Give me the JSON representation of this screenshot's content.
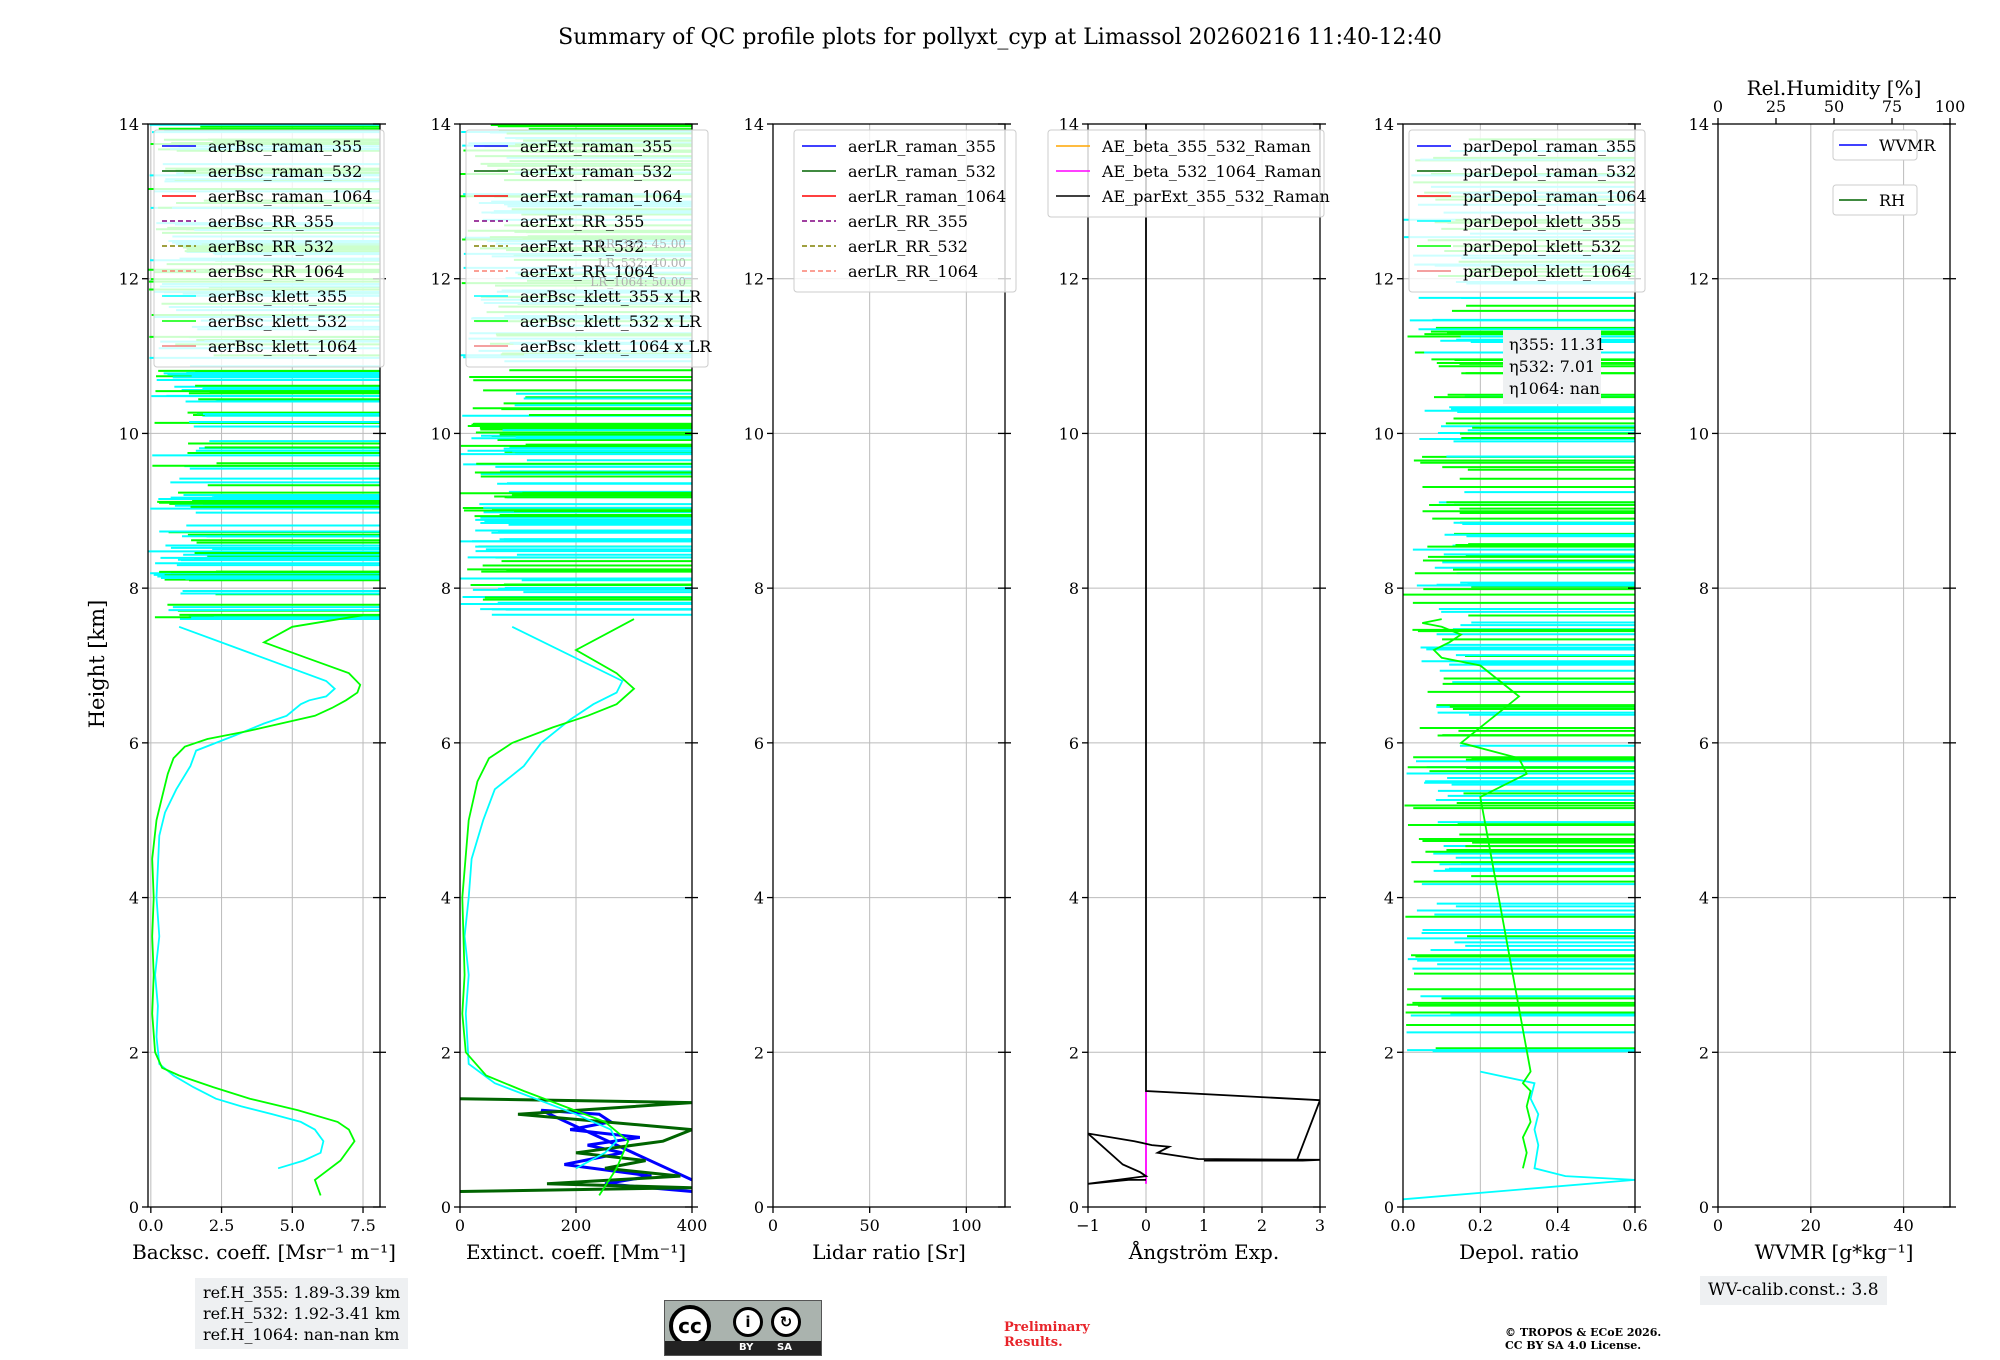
{
  "figure_title": "Summary of QC profile plots for pollyxt_cyp at Limassol 20260216 11:40-12:40",
  "ylabel": "Height [km]",
  "colors": {
    "blue": "#0000ff",
    "darkgreen": "#006400",
    "red": "#ff0000",
    "purple": "#800080",
    "olive": "#808000",
    "salmon": "#fa8072",
    "cyan": "#00ffff",
    "lime": "#00ff00",
    "lightcoral": "#f08080",
    "orange": "#ffa500",
    "magenta": "#ff00ff",
    "black": "#000000",
    "grid": "#bbbbbb"
  },
  "ref_box": [
    "ref.H_355: 1.89-3.39 km",
    "ref.H_532: 1.92-3.41 km",
    "ref.H_1064: nan-nan km"
  ],
  "wv_box": "WV-calib.const.: 3.8",
  "license": {
    "cc": "cc",
    "by": "BY",
    "sa": "SA"
  },
  "preliminary": [
    "Preliminary",
    "Results."
  ],
  "copyright": [
    "© TROPOS & ECoE 2026.",
    "CC BY SA 4.0 License."
  ],
  "chart_data": [
    {
      "type": "line",
      "id": "bsc",
      "xlabel": "Backsc. coeff. [Msr⁻¹ m⁻¹]",
      "xlim": [
        -0.1,
        8.1
      ],
      "xticks": [
        0,
        2.5,
        5,
        7.5
      ],
      "xtick_labels": [
        "0.0",
        "2.5",
        "5.0",
        "7.5"
      ],
      "ylim": [
        0,
        14
      ],
      "yticks": [
        0,
        2,
        4,
        6,
        8,
        10,
        12,
        14
      ],
      "legend": [
        "aerBsc_raman_355",
        "aerBsc_raman_532",
        "aerBsc_raman_1064",
        "aerBsc_RR_355",
        "aerBsc_RR_532",
        "aerBsc_RR_1064",
        "aerBsc_klett_355",
        "aerBsc_klett_532",
        "aerBsc_klett_1064"
      ],
      "legend_colors": [
        "blue",
        "darkgreen",
        "red",
        "purple",
        "olive",
        "salmon",
        "cyan",
        "lime",
        "lightcoral"
      ],
      "legend_dashed": [
        false,
        false,
        false,
        true,
        true,
        true,
        false,
        false,
        false
      ],
      "series": [
        {
          "name": "aerBsc_klett_355",
          "color": "cyan",
          "x": [
            4.5,
            5.4,
            6.0,
            6.1,
            5.8,
            5.3,
            4.3,
            3.2,
            2.3,
            1.5,
            0.8,
            0.3,
            0.2,
            0.25,
            0.15,
            0.3,
            0.2,
            0.25,
            0.3,
            0.5,
            0.9,
            1.4,
            1.6,
            3.0,
            4.0,
            4.8,
            5.3,
            5.6,
            6.2,
            6.5,
            6.2,
            1.0
          ],
          "y": [
            0.5,
            0.6,
            0.7,
            0.85,
            1.0,
            1.1,
            1.2,
            1.3,
            1.4,
            1.55,
            1.7,
            1.85,
            2.2,
            2.6,
            3.0,
            3.5,
            4.0,
            4.4,
            4.8,
            5.1,
            5.4,
            5.7,
            5.9,
            6.1,
            6.25,
            6.35,
            6.5,
            6.55,
            6.6,
            6.7,
            6.8,
            7.5
          ]
        },
        {
          "name": "aerBsc_klett_532",
          "color": "lime",
          "x": [
            6.0,
            5.8,
            6.7,
            7.2,
            7.0,
            6.6,
            5.2,
            3.5,
            2.2,
            1.0,
            0.4,
            0.15,
            0.05,
            0.1,
            0.05,
            0.1,
            0.05,
            0.2,
            0.4,
            0.6,
            0.8,
            1.2,
            2.0,
            3.4,
            4.6,
            5.8,
            6.4,
            6.9,
            7.3,
            7.4,
            7.0,
            5.5,
            4.0,
            5.0,
            7.5
          ],
          "y": [
            0.15,
            0.35,
            0.6,
            0.85,
            1.0,
            1.1,
            1.25,
            1.4,
            1.55,
            1.7,
            1.8,
            2.0,
            2.5,
            3.0,
            3.5,
            4.0,
            4.5,
            5.0,
            5.3,
            5.6,
            5.8,
            5.95,
            6.05,
            6.15,
            6.25,
            6.35,
            6.45,
            6.55,
            6.65,
            6.75,
            6.9,
            7.1,
            7.3,
            7.5,
            7.65
          ]
        }
      ]
    },
    {
      "type": "line",
      "id": "ext",
      "xlabel": "Extinct. coeff. [Mm⁻¹]",
      "xlim": [
        0,
        400
      ],
      "xticks": [
        0,
        200,
        400
      ],
      "xtick_labels": [
        "0",
        "200",
        "400"
      ],
      "ylim": [
        0,
        14
      ],
      "yticks": [
        0,
        2,
        4,
        6,
        8,
        10,
        12,
        14
      ],
      "legend": [
        "aerExt_raman_355",
        "aerExt_raman_532",
        "aerExt_raman_1064",
        "aerExt_RR_355",
        "aerExt_RR_532",
        "aerExt_RR_1064",
        "aerBsc_klett_355 x LR",
        "aerBsc_klett_532 x LR",
        "aerBsc_klett_1064 x LR"
      ],
      "legend_colors": [
        "blue",
        "darkgreen",
        "red",
        "purple",
        "olive",
        "salmon",
        "cyan",
        "lime",
        "lightcoral"
      ],
      "legend_dashed": [
        false,
        false,
        false,
        true,
        true,
        true,
        false,
        false,
        false
      ],
      "annotation": [
        "LR_355: 45.00",
        "LR_532: 40.00",
        "LR_1064: 50.00"
      ],
      "series": [
        {
          "name": "aerExt_raman_355",
          "color": "blue",
          "x": [
            400,
            250,
            330,
            180,
            280,
            220,
            310,
            190,
            260,
            240,
            140,
            400
          ],
          "y": [
            0.2,
            0.3,
            0.4,
            0.55,
            0.7,
            0.8,
            0.9,
            1.0,
            1.1,
            1.2,
            1.25,
            0.35
          ]
        },
        {
          "name": "aerExt_raman_532",
          "color": "darkgreen",
          "x": [
            0,
            400,
            150,
            380,
            250,
            320,
            200,
            350,
            400,
            100,
            400,
            0
          ],
          "y": [
            0.2,
            0.25,
            0.3,
            0.4,
            0.5,
            0.6,
            0.7,
            0.85,
            1.0,
            1.2,
            1.35,
            1.4
          ]
        },
        {
          "name": "aerBsc_klett_355 x LR",
          "color": "cyan",
          "x": [
            200,
            250,
            270,
            260,
            200,
            130,
            60,
            15,
            10,
            15,
            8,
            15,
            20,
            40,
            60,
            110,
            140,
            190,
            230,
            270,
            280,
            90
          ],
          "y": [
            0.5,
            0.7,
            0.85,
            1.0,
            1.2,
            1.4,
            1.6,
            1.85,
            2.5,
            3.0,
            3.5,
            4.0,
            4.5,
            5.0,
            5.4,
            5.7,
            6.0,
            6.3,
            6.5,
            6.65,
            6.8,
            7.5
          ]
        },
        {
          "name": "aerBsc_klett_532 x LR",
          "color": "lime",
          "x": [
            240,
            270,
            290,
            250,
            180,
            110,
            45,
            10,
            4,
            8,
            4,
            15,
            30,
            50,
            90,
            160,
            220,
            270,
            300,
            270,
            200,
            300
          ],
          "y": [
            0.15,
            0.5,
            0.85,
            1.1,
            1.3,
            1.5,
            1.7,
            2.0,
            2.5,
            3.0,
            4.0,
            5.0,
            5.5,
            5.8,
            6.0,
            6.2,
            6.35,
            6.5,
            6.7,
            6.9,
            7.2,
            7.6
          ]
        }
      ]
    },
    {
      "type": "line",
      "id": "lr",
      "xlabel": "Lidar ratio [Sr]",
      "xlim": [
        0,
        120
      ],
      "xticks": [
        0,
        50,
        100
      ],
      "xtick_labels": [
        "0",
        "50",
        "100"
      ],
      "ylim": [
        0,
        14
      ],
      "yticks": [
        0,
        2,
        4,
        6,
        8,
        10,
        12,
        14
      ],
      "legend": [
        "aerLR_raman_355",
        "aerLR_raman_532",
        "aerLR_raman_1064",
        "aerLR_RR_355",
        "aerLR_RR_532",
        "aerLR_RR_1064"
      ],
      "legend_colors": [
        "blue",
        "darkgreen",
        "red",
        "purple",
        "olive",
        "salmon"
      ],
      "legend_dashed": [
        false,
        false,
        false,
        true,
        true,
        true
      ],
      "series": []
    },
    {
      "type": "line",
      "id": "ae",
      "xlabel": "Ångström Exp.",
      "xlim": [
        -1,
        3
      ],
      "xticks": [
        -1,
        0,
        1,
        2,
        3
      ],
      "xtick_labels": [
        "−1",
        "0",
        "1",
        "2",
        "3"
      ],
      "ylim": [
        0,
        14
      ],
      "yticks": [
        0,
        2,
        4,
        6,
        8,
        10,
        12,
        14
      ],
      "legend": [
        "AE_beta_355_532_Raman",
        "AE_beta_532_1064_Raman",
        "AE_parExt_355_532_Raman"
      ],
      "legend_colors": [
        "orange",
        "magenta",
        "black"
      ],
      "legend_dashed": [
        false,
        false,
        false
      ],
      "series": [
        {
          "name": "AE_beta_532_1064_Raman",
          "color": "magenta",
          "x": [
            0,
            0
          ],
          "y": [
            0.3,
            1.5
          ]
        },
        {
          "name": "AE_parExt_355_532_Raman",
          "color": "black",
          "x": [
            0,
            0,
            3,
            2.6,
            1,
            2.7,
            3,
            0.9,
            0.2,
            0.4,
            0.1,
            -0.2,
            -1,
            -0.4,
            -0.1,
            0,
            -1,
            -0.3,
            0
          ],
          "y": [
            14,
            1.5,
            1.38,
            0.6,
            0.6,
            0.6,
            0.61,
            0.62,
            0.7,
            0.78,
            0.8,
            0.85,
            0.95,
            0.55,
            0.45,
            0.4,
            0.3,
            0.35,
            0.35
          ]
        }
      ]
    },
    {
      "type": "line",
      "id": "depol",
      "xlabel": "Depol. ratio",
      "xlim": [
        0,
        0.6
      ],
      "xticks": [
        0,
        0.2,
        0.4,
        0.6
      ],
      "xtick_labels": [
        "0.0",
        "0.2",
        "0.4",
        "0.6"
      ],
      "ylim": [
        0,
        14
      ],
      "yticks": [
        0,
        2,
        4,
        6,
        8,
        10,
        12,
        14
      ],
      "legend": [
        "parDepol_raman_355",
        "parDepol_raman_532",
        "parDepol_raman_1064",
        "parDepol_klett_355",
        "parDepol_klett_532",
        "parDepol_klett_1064"
      ],
      "legend_colors": [
        "blue",
        "darkgreen",
        "red",
        "cyan",
        "lime",
        "lightcoral"
      ],
      "legend_dashed": [
        false,
        false,
        false,
        false,
        false,
        false
      ],
      "annotation": [
        "η355: 11.31",
        "η532: 7.01",
        "η1064: nan"
      ],
      "series": [
        {
          "name": "parDepol_klett_355",
          "color": "cyan",
          "x": [
            0.0,
            0.6,
            0.42,
            0.34,
            0.35,
            0.34,
            0.35,
            0.33,
            0.34,
            0.2
          ],
          "y": [
            0.1,
            0.35,
            0.4,
            0.5,
            0.8,
            1.0,
            1.2,
            1.4,
            1.6,
            1.75
          ]
        },
        {
          "name": "parDepol_klett_532",
          "color": "lime",
          "x": [
            0.31,
            0.32,
            0.31,
            0.33,
            0.32,
            0.33,
            0.31,
            0.33,
            0.2,
            0.32,
            0.3,
            0.15,
            0.2,
            0.25,
            0.3,
            0.25,
            0.2,
            0.1,
            0.08,
            0.12,
            0.15,
            0.1,
            0.05,
            0.1
          ],
          "y": [
            0.5,
            0.7,
            0.9,
            1.1,
            1.3,
            1.5,
            1.6,
            1.75,
            5.3,
            5.6,
            5.8,
            6.0,
            6.2,
            6.4,
            6.6,
            6.8,
            7.0,
            7.1,
            7.2,
            7.3,
            7.4,
            7.5,
            7.55,
            7.6
          ]
        }
      ]
    },
    {
      "type": "line",
      "id": "wv",
      "xlabel": "WVMR [g*kg⁻¹]",
      "xlim": [
        0,
        50
      ],
      "xticks": [
        0,
        20,
        40
      ],
      "xtick_labels": [
        "0",
        "20",
        "40"
      ],
      "ylim": [
        0,
        14
      ],
      "yticks": [
        0,
        2,
        4,
        6,
        8,
        10,
        12,
        14
      ],
      "top_axis": {
        "label": "Rel.Humidity [%]",
        "xlim": [
          0,
          100
        ],
        "xticks": [
          0,
          25,
          50,
          75,
          100
        ],
        "xtick_labels": [
          "0",
          "25",
          "50",
          "75",
          "100"
        ]
      },
      "legend": [
        "WVMR",
        "RH"
      ],
      "legend_colors": [
        "blue",
        "darkgreen"
      ],
      "legend_dashed": [
        false,
        false
      ],
      "series": []
    }
  ]
}
